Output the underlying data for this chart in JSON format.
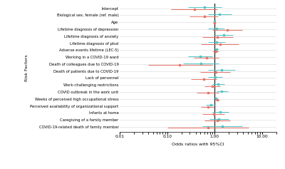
{
  "labels": [
    "Intercept",
    "Biological sex, female (ref. male)",
    "Age",
    "Lifetime diagnosis of depression",
    "Lifetime diagnosis of anxiety",
    "Lifetime diagnosis of ptsd",
    "Adverse events lifetime (LEC-5)",
    "Working in a COVID-19 ward",
    "Death of colleagues due to COVID-19",
    "Death of patients due to COVID-19",
    "Lack of personnel",
    "Work-challenging restrictions",
    "COVID outbreak in the work unit",
    "Weeks of perceived high occupational stress",
    "Perceived availability of organizational support",
    "Infants at home",
    "Caregiving of a family member",
    "COVID-19-related death of family member"
  ],
  "ltd_est": [
    0.38,
    0.6,
    0.98,
    1.85,
    1.15,
    1.3,
    1.05,
    0.68,
    0.18,
    1.05,
    0.58,
    0.88,
    0.72,
    1.12,
    0.72,
    0.95,
    1.15,
    0.72
  ],
  "ltd_lo": [
    0.12,
    0.3,
    0.93,
    0.9,
    0.55,
    0.52,
    0.9,
    0.36,
    0.04,
    0.5,
    0.32,
    0.6,
    0.42,
    1.02,
    0.52,
    0.55,
    0.62,
    0.1
  ],
  "ltd_hi": [
    1.12,
    1.18,
    1.04,
    3.8,
    2.4,
    3.2,
    1.22,
    1.22,
    0.88,
    2.1,
    1.08,
    1.3,
    1.22,
    1.24,
    0.96,
    1.62,
    2.1,
    5.2
  ],
  "std_est": [
    0.62,
    1.28,
    0.99,
    1.08,
    1.55,
    1.1,
    1.08,
    0.5,
    0.52,
    1.38,
    1.02,
    1.18,
    1.42,
    1.05,
    0.82,
    1.3,
    1.22,
    1.45
  ],
  "std_lo": [
    0.28,
    0.72,
    0.96,
    0.72,
    1.0,
    0.72,
    0.98,
    0.28,
    0.22,
    0.72,
    0.72,
    0.88,
    1.08,
    0.98,
    0.65,
    0.88,
    0.78,
    0.55
  ],
  "std_hi": [
    1.4,
    2.25,
    1.03,
    1.62,
    2.4,
    1.68,
    1.18,
    0.88,
    1.22,
    2.7,
    1.45,
    1.58,
    1.92,
    1.12,
    1.02,
    1.95,
    1.95,
    3.8
  ],
  "ltd_color": "#E8746A",
  "std_color": "#52C5C5",
  "vline_color": "#222222",
  "ylabel": "Risk Factors",
  "xlabel": "Odds ratios with 95%CI",
  "xlim_lo": 0.01,
  "xlim_hi": 20.0,
  "xticks": [
    0.01,
    0.1,
    1.0,
    10.0
  ],
  "xtick_labels": [
    "0.01",
    "0.10",
    "1.00",
    "10.00"
  ]
}
